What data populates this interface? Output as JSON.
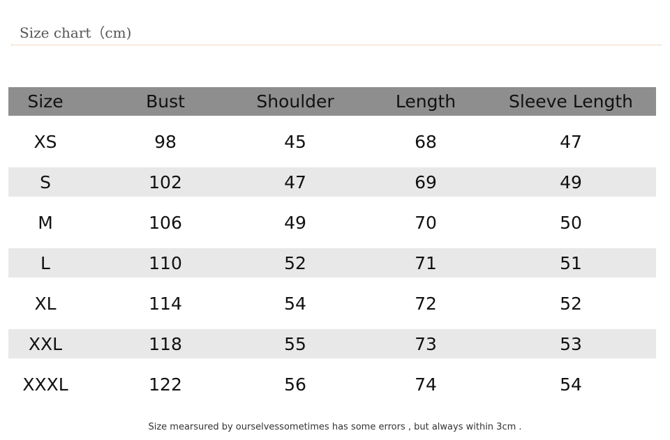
{
  "title": "Size chart（cm)",
  "table": {
    "headers": [
      "Size",
      "Bust",
      "Shoulder",
      "Length",
      "Sleeve Length"
    ],
    "rows": [
      [
        "XS",
        "98",
        "45",
        "68",
        "47"
      ],
      [
        "S",
        "102",
        "47",
        "69",
        "49"
      ],
      [
        "M",
        "106",
        "49",
        "70",
        "50"
      ],
      [
        "L",
        "110",
        "52",
        "71",
        "51"
      ],
      [
        "XL",
        "114",
        "54",
        "72",
        "52"
      ],
      [
        "XXL",
        "118",
        "55",
        "73",
        "53"
      ],
      [
        "XXXL",
        "122",
        "56",
        "74",
        "54"
      ]
    ]
  },
  "note": "Size mearsured by ourselvessometimes has some errors , but always within 3cm .",
  "colors": {
    "header_bg": "#8e8e8e",
    "stripe_bg": "#e8e8e8",
    "rule": "#e2b27a"
  }
}
